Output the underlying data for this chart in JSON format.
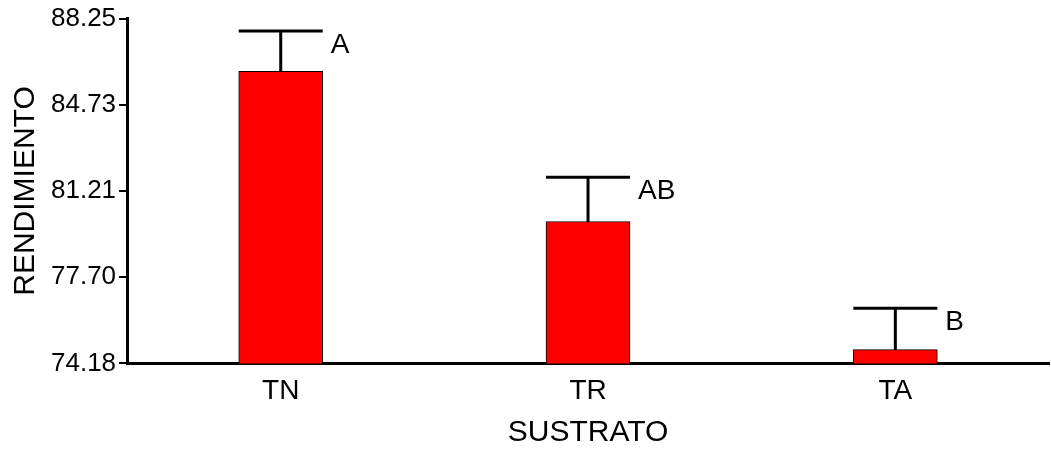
{
  "chart_data": {
    "type": "bar",
    "xlabel": "SUSTRATO",
    "ylabel": "RENDIMIENTO",
    "categories": [
      "TN",
      "TR",
      "TA"
    ],
    "values": [
      86.1,
      79.97,
      74.74
    ],
    "errors": [
      1.64,
      1.81,
      1.69
    ],
    "color": "#ff0000",
    "ylim": [
      74.18,
      88.25
    ],
    "yticks": [
      {
        "value": 74.18,
        "label": "74.18"
      },
      {
        "value": 77.7,
        "label": "77.70"
      },
      {
        "value": 81.21,
        "label": "81.21"
      },
      {
        "value": 84.73,
        "label": "84.73"
      },
      {
        "value": 88.25,
        "label": "88.25"
      }
    ],
    "annotations": [
      "A",
      "AB",
      "B"
    ],
    "grid": false,
    "legend": false
  }
}
